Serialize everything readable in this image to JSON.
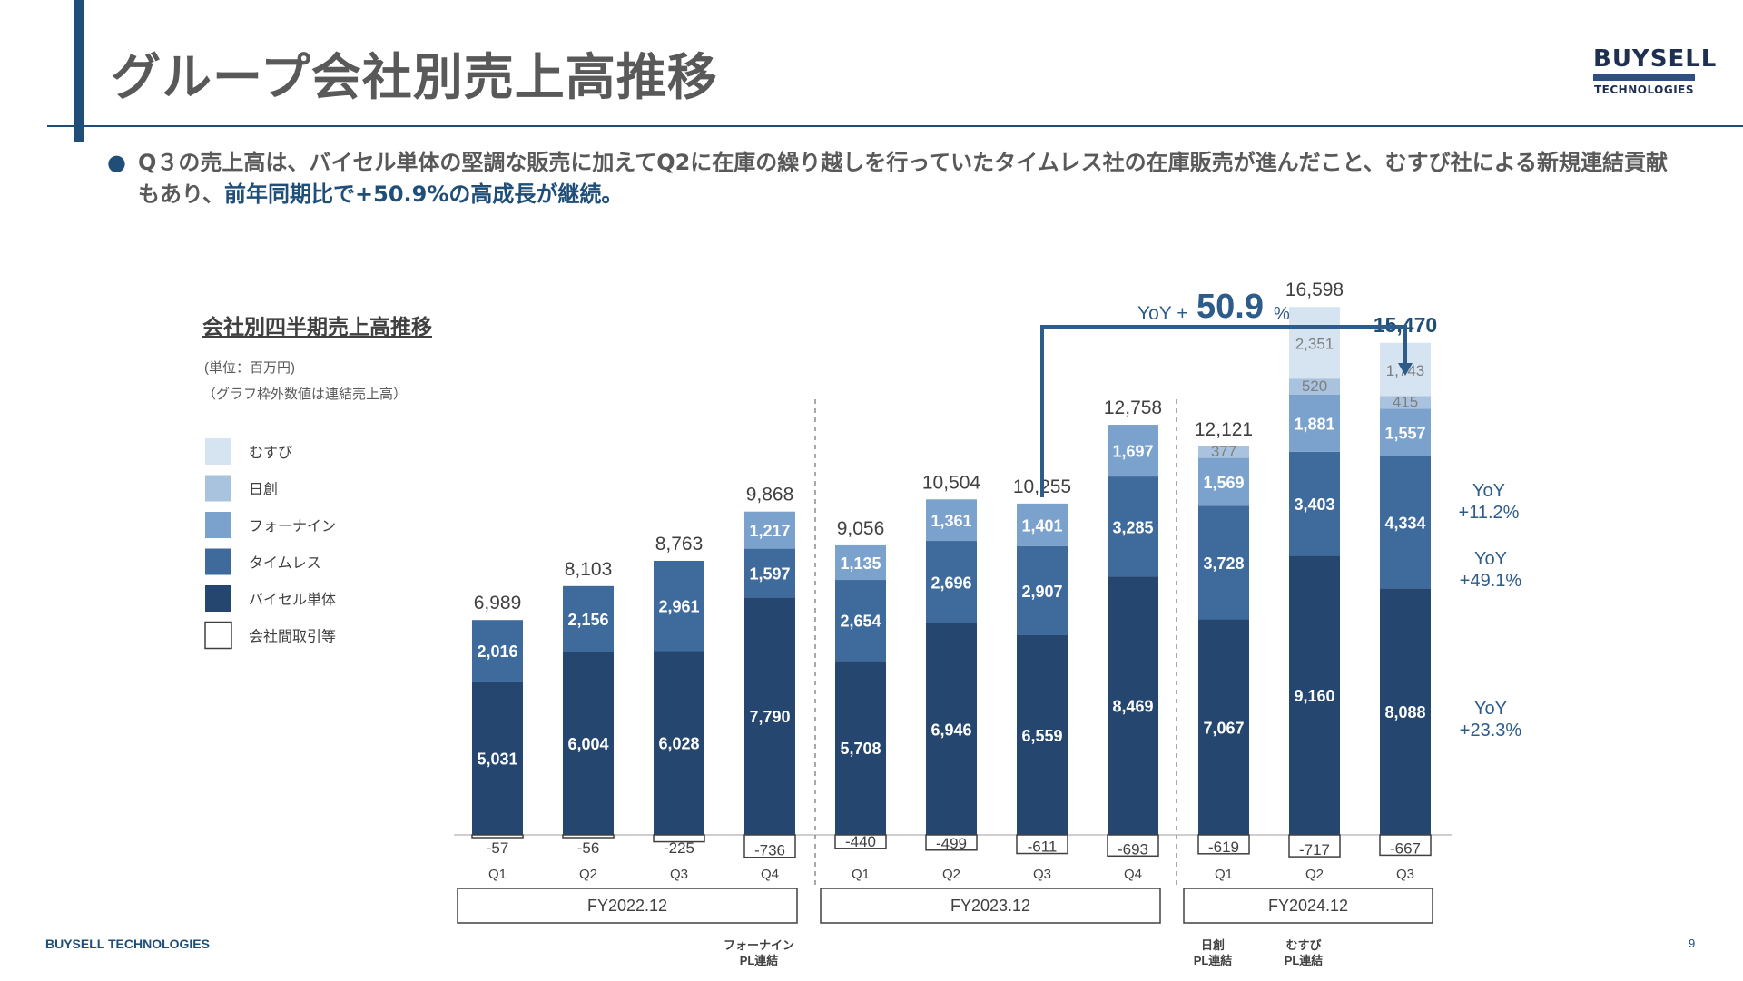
{
  "page": {
    "title": "グループ会社別売上高推移",
    "bullet_text": "Q３の売上高は、バイセル単体の堅調な販売に加えてQ2に在庫の繰り越しを行っていたタイムレス社の在庫販売が進んだこと、むすび社による新規連結貢献もあり、",
    "bullet_highlight": "前年同期比で+50.9%の高成長が継続。",
    "logo_top": "BUYSELL",
    "logo_bottom": "TECHNOLOGIES",
    "footer_brand": "BUYSELL TECHNOLOGIES",
    "page_number": "9"
  },
  "colors": {
    "musubi": "#d6e3f0",
    "nissou": "#a9c3de",
    "fourine": "#7ba2cc",
    "timeless": "#3e6a9c",
    "buysell": "#25466e",
    "accent": "#1f4e79"
  },
  "chart_data": {
    "type": "bar",
    "stacked": true,
    "title": "会社別四半期売上高推移",
    "unit_note": "(単位：百万円)",
    "sub_note": "（グラフ枠外数値は連結売上高）",
    "categories": [
      "Q1",
      "Q2",
      "Q3",
      "Q4",
      "Q1",
      "Q2",
      "Q3",
      "Q4",
      "Q1",
      "Q2",
      "Q3"
    ],
    "fiscal_years": [
      {
        "label": "FY2022.12",
        "start": 0,
        "end": 3
      },
      {
        "label": "FY2023.12",
        "start": 4,
        "end": 7
      },
      {
        "label": "FY2024.12",
        "start": 8,
        "end": 10
      }
    ],
    "series": [
      {
        "name": "バイセル単体",
        "key": "buysell",
        "values": [
          5031,
          6004,
          6028,
          7790,
          5708,
          6946,
          6559,
          8469,
          7067,
          9160,
          8088
        ]
      },
      {
        "name": "タイムレス",
        "key": "timeless",
        "values": [
          2016,
          2156,
          2961,
          1597,
          2654,
          2696,
          2907,
          3285,
          3728,
          3403,
          4334
        ]
      },
      {
        "name": "フォーナイン",
        "key": "fourine",
        "values": [
          0,
          0,
          0,
          1217,
          1135,
          1361,
          1401,
          1697,
          1569,
          1881,
          1557
        ]
      },
      {
        "name": "日創",
        "key": "nissou",
        "values": [
          0,
          0,
          0,
          0,
          0,
          0,
          0,
          0,
          377,
          520,
          415
        ]
      },
      {
        "name": "むすび",
        "key": "musubi",
        "values": [
          0,
          0,
          0,
          0,
          0,
          0,
          0,
          0,
          0,
          2351,
          1743
        ]
      },
      {
        "name": "会社間取引等",
        "key": "elim",
        "values": [
          -57,
          -56,
          -225,
          -736,
          -440,
          -499,
          -611,
          -693,
          -619,
          -717,
          -667
        ]
      }
    ],
    "totals": [
      "6,989",
      "8,103",
      "8,763",
      "9,868",
      "9,056",
      "10,504",
      "10,255",
      "12,758",
      "12,121",
      "16,598",
      "15,470"
    ],
    "highlight_index": 10,
    "yoy_main": {
      "prefix": "YoY +",
      "value": "50.9",
      "suffix": "%",
      "from_index": 6,
      "to_index": 10
    },
    "yoy_side": [
      {
        "line1": "YoY",
        "line2": "+11.2%",
        "series": "fourine"
      },
      {
        "line1": "YoY",
        "line2": "+49.1%",
        "series": "timeless"
      },
      {
        "line1": "YoY",
        "line2": "+23.3%",
        "series": "buysell"
      }
    ],
    "notes": [
      {
        "index": 3,
        "line1": "フォーナイン",
        "line2": "PL連結"
      },
      {
        "index": 8,
        "line1": "日創",
        "line2": "PL連結"
      },
      {
        "index": 9,
        "line1": "むすび",
        "line2": "PL連結"
      }
    ],
    "legend": [
      {
        "key": "musubi",
        "label": "むすび"
      },
      {
        "key": "nissou",
        "label": "日創"
      },
      {
        "key": "fourine",
        "label": "フォーナイン"
      },
      {
        "key": "timeless",
        "label": "タイムレス"
      },
      {
        "key": "buysell",
        "label": "バイセル単体"
      },
      {
        "key": "elim",
        "label": "会社間取引等"
      }
    ]
  }
}
